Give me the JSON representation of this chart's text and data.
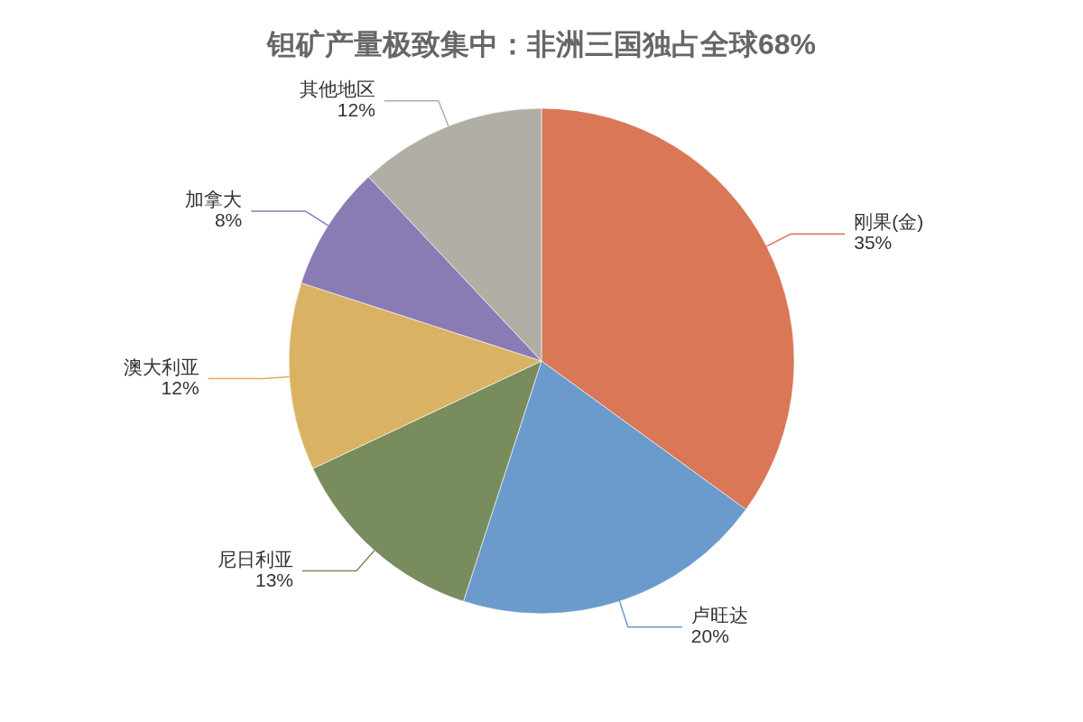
{
  "chart_data": {
    "type": "pie",
    "title": "钽矿产量极致集中：非洲三国独占全球68%",
    "categories": [
      "刚果(金)",
      "卢旺达",
      "尼日利亚",
      "澳大利亚",
      "加拿大",
      "其他地区"
    ],
    "values": [
      35,
      20,
      13,
      12,
      8,
      12
    ],
    "value_labels": [
      "35%",
      "20%",
      "13%",
      "12%",
      "8%",
      "12%"
    ],
    "colors": [
      "#d97757",
      "#6b9bcc",
      "#788c5d",
      "#d9b263",
      "#8b7bb5",
      "#b0aea5"
    ]
  }
}
